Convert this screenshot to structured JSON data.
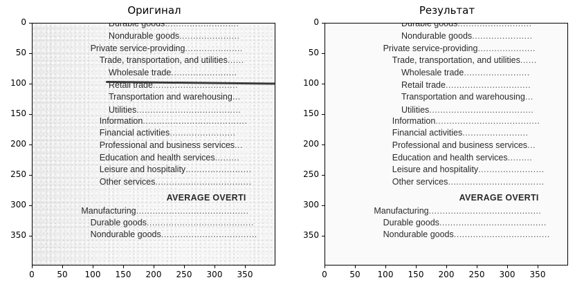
{
  "panels": [
    {
      "title": "Оригинал"
    },
    {
      "title": "Результат"
    }
  ],
  "axis_ticks": {
    "x": [
      "0",
      "50",
      "100",
      "150",
      "200",
      "250",
      "300",
      "350"
    ],
    "y": [
      "0",
      "50",
      "100",
      "150",
      "200",
      "250",
      "300",
      "350"
    ]
  },
  "document_lines": [
    {
      "text": "Durable goods",
      "dots": "..........................."
    },
    {
      "text": "Nondurable goods",
      "dots": "......................"
    },
    {
      "text": "Private service-providing",
      "dots": "....................."
    },
    {
      "text": "Trade, transportation, and utilities",
      "dots": "......"
    },
    {
      "text": "Wholesale trade",
      "dots": "........................"
    },
    {
      "text": "Retail trade",
      "dots": "..............................."
    },
    {
      "text": "Transportation and warehousing",
      "dots": "..."
    },
    {
      "text": "Utilities",
      "dots": "......................................"
    },
    {
      "text": "Information",
      "dots": "......................................"
    },
    {
      "text": "Financial activities",
      "dots": "........................"
    },
    {
      "text": "Professional and business services",
      "dots": "..."
    },
    {
      "text": "Education and health services",
      "dots": "........."
    },
    {
      "text": "Leisure and hospitality",
      "dots": "........................"
    },
    {
      "text": "Other services",
      "dots": "..................................."
    },
    {
      "text": "AVERAGE OVERTI",
      "dots": ""
    },
    {
      "text": "Manufacturing",
      "dots": "........................................."
    },
    {
      "text": "Durable goods",
      "dots": "......................................."
    },
    {
      "text": "Nondurable goods",
      "dots": "..................................."
    }
  ]
}
